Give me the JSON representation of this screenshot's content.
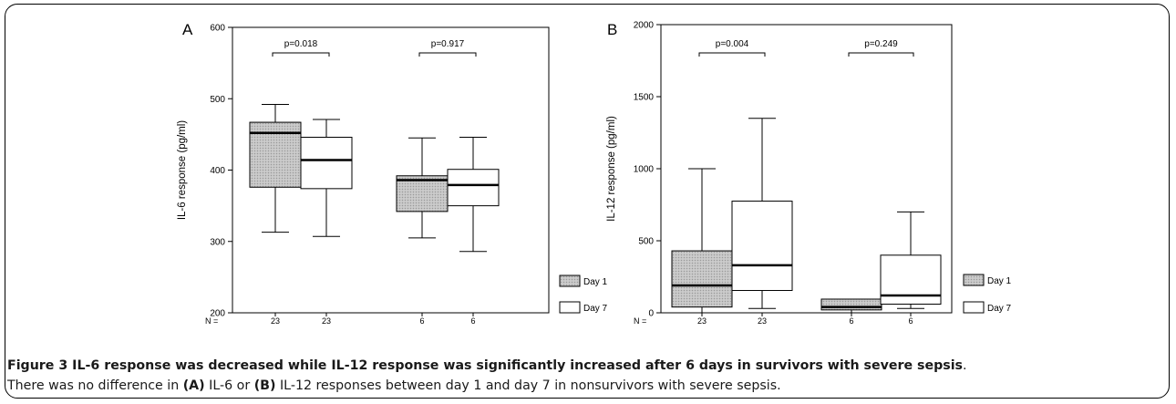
{
  "caption": {
    "title": "Figure 3 IL-6 response was decreased while IL-12 response was significantly increased after 6 days in survivors with severe sepsis",
    "title_end": ".",
    "text_1": "There was no difference in ",
    "a_label": "(A)",
    "text_2": " IL-6 or ",
    "b_label": "(B)",
    "text_3": " IL-12 responses between day 1 and day 7 in nonsurvivors with severe sepsis."
  },
  "colors": {
    "day1_fill": "#c4c4c4",
    "day7_fill": "#ffffff",
    "stroke": "#000000"
  },
  "chart_data": [
    {
      "type": "box",
      "panel_label": "A",
      "ylabel": "IL-6 response (pg/ml)",
      "ylim": [
        200,
        600
      ],
      "yticks": [
        200,
        300,
        400,
        500,
        600
      ],
      "n_label": "N =",
      "groups": [
        {
          "name": "Survivors",
          "n": [
            "23",
            "23"
          ],
          "pvalue": "p=0.018"
        },
        {
          "name": "Non-survivors",
          "n": [
            "6",
            "6"
          ],
          "pvalue": "p=0.917"
        }
      ],
      "series": [
        {
          "name": "Day 1",
          "boxes": [
            {
              "min": 313,
              "q1": 376,
              "median": 452,
              "q3": 467,
              "max": 492
            },
            {
              "min": 305,
              "q1": 342,
              "median": 386,
              "q3": 392,
              "max": 445
            }
          ]
        },
        {
          "name": "Day 7",
          "boxes": [
            {
              "min": 307,
              "q1": 374,
              "median": 414,
              "q3": 446,
              "max": 471
            },
            {
              "min": 286,
              "q1": 350,
              "median": 379,
              "q3": 401,
              "max": 446
            }
          ]
        }
      ],
      "legend": [
        "Day 1",
        "Day 7"
      ]
    },
    {
      "type": "box",
      "panel_label": "B",
      "ylabel": "IL-12 response (pg/ml)",
      "ylim": [
        0,
        2000
      ],
      "yticks": [
        0,
        500,
        1000,
        1500,
        2000
      ],
      "n_label": "N =",
      "groups": [
        {
          "name": "Survivors",
          "n": [
            "23",
            "23"
          ],
          "pvalue": "p=0.004"
        },
        {
          "name": "Non-survivors",
          "n": [
            "6",
            "6"
          ],
          "pvalue": "p=0.249"
        }
      ],
      "series": [
        {
          "name": "Day 1",
          "boxes": [
            {
              "min": 0,
              "q1": 40,
              "median": 190,
              "q3": 430,
              "max": 1000
            },
            {
              "min": 0,
              "q1": 20,
              "median": 40,
              "q3": 95,
              "max": 95
            }
          ]
        },
        {
          "name": "Day 7",
          "boxes": [
            {
              "min": 30,
              "q1": 155,
              "median": 330,
              "q3": 775,
              "max": 1350
            },
            {
              "min": 30,
              "q1": 60,
              "median": 120,
              "q3": 400,
              "max": 700
            }
          ]
        }
      ],
      "legend": [
        "Day 1",
        "Day 7"
      ]
    }
  ]
}
